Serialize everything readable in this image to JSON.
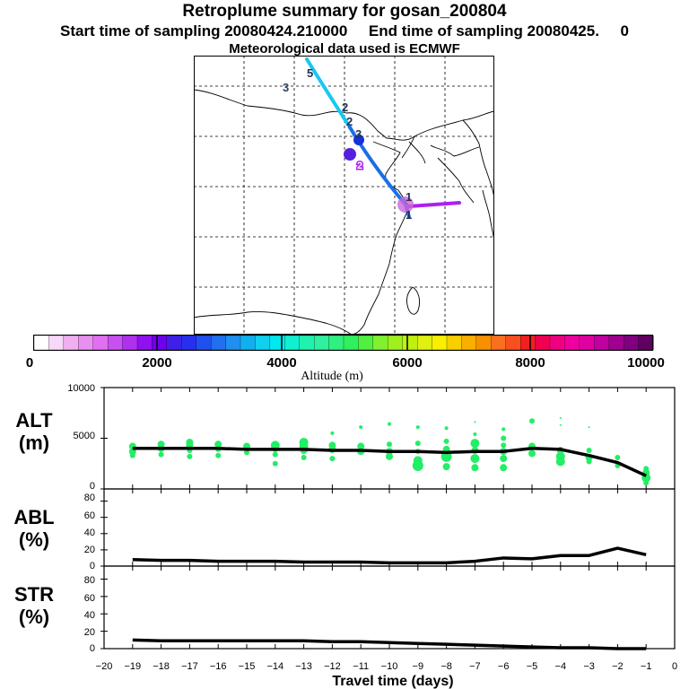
{
  "header": {
    "title": "Retroplume summary for gosan_200804",
    "subtitle": "Start time of sampling 20080424.210000     End time of sampling 20080425.     0",
    "met_line": "Meteorological data used is ECMWF"
  },
  "colors": {
    "scatter": "#22ee66",
    "line": "#000000",
    "plume_light_blue": "#18c8f0",
    "plume_blue": "#1a6ee8",
    "plume_purple": "#aa22ee",
    "marker_dark_blue": "#1830d8"
  },
  "map": {
    "marker_labels": [
      "5",
      "3",
      "2",
      "2",
      "3",
      "2",
      "1",
      "1"
    ]
  },
  "colorbar": {
    "title": "Altitude (m)",
    "ticks": [
      "0",
      "2000",
      "4000",
      "6000",
      "8000",
      "10000"
    ],
    "colors": [
      "#ffffff",
      "#f8d8f8",
      "#f0b0f0",
      "#e890f0",
      "#e070f0",
      "#c850f0",
      "#b030f0",
      "#9010f0",
      "#7000f0",
      "#4020e8",
      "#2830f0",
      "#2050f0",
      "#2070f0",
      "#2090f0",
      "#10b0f0",
      "#10d0f0",
      "#00e8f0",
      "#10f0d0",
      "#20f0b0",
      "#30f0a0",
      "#30f080",
      "#30f060",
      "#50f040",
      "#80f030",
      "#a0f020",
      "#c0f010",
      "#e0f010",
      "#f8f000",
      "#f8d000",
      "#f8b000",
      "#f89000",
      "#f87020",
      "#f85020",
      "#f02020",
      "#f00050",
      "#f00080",
      "#f000a0",
      "#e000a0",
      "#c000a0",
      "#a00090",
      "#800080",
      "#600060"
    ]
  },
  "chart_data": [
    {
      "type": "scatter",
      "name": "ALT",
      "ylabel": "ALT",
      "yunit": "(m)",
      "xlim": [
        -20,
        0
      ],
      "ylim": [
        0,
        10000
      ],
      "yticks": [
        "0",
        "5000",
        "10000"
      ],
      "line": {
        "x": [
          -19,
          -18,
          -17,
          -16,
          -15,
          -14,
          -13,
          -12,
          -11,
          -10,
          -9,
          -8,
          -7,
          -6,
          -5,
          -4,
          -3,
          -2,
          -1
        ],
        "y": [
          4000,
          4000,
          4000,
          4000,
          3900,
          3900,
          3900,
          3800,
          3800,
          3700,
          3700,
          3600,
          3700,
          3700,
          4000,
          3900,
          3300,
          2600,
          1300
        ]
      },
      "points": [
        {
          "x": -19,
          "y": 4200,
          "r": 4
        },
        {
          "x": -19,
          "y": 3700,
          "r": 4
        },
        {
          "x": -19,
          "y": 3300,
          "r": 3
        },
        {
          "x": -18,
          "y": 4400,
          "r": 4
        },
        {
          "x": -18,
          "y": 4000,
          "r": 4
        },
        {
          "x": -18,
          "y": 3400,
          "r": 3
        },
        {
          "x": -17,
          "y": 4600,
          "r": 4
        },
        {
          "x": -17,
          "y": 4300,
          "r": 4
        },
        {
          "x": -17,
          "y": 3800,
          "r": 3
        },
        {
          "x": -17,
          "y": 3200,
          "r": 3
        },
        {
          "x": -16,
          "y": 4400,
          "r": 4
        },
        {
          "x": -16,
          "y": 3900,
          "r": 3
        },
        {
          "x": -16,
          "y": 3300,
          "r": 3
        },
        {
          "x": -15,
          "y": 4200,
          "r": 4
        },
        {
          "x": -15,
          "y": 3600,
          "r": 3
        },
        {
          "x": -14,
          "y": 4300,
          "r": 5
        },
        {
          "x": -14,
          "y": 4000,
          "r": 4
        },
        {
          "x": -14,
          "y": 3400,
          "r": 3
        },
        {
          "x": -14,
          "y": 2500,
          "r": 3
        },
        {
          "x": -13,
          "y": 4600,
          "r": 5
        },
        {
          "x": -13,
          "y": 4200,
          "r": 5
        },
        {
          "x": -13,
          "y": 3800,
          "r": 4
        },
        {
          "x": -13,
          "y": 3100,
          "r": 3
        },
        {
          "x": -12,
          "y": 5500,
          "r": 2
        },
        {
          "x": -12,
          "y": 4300,
          "r": 4
        },
        {
          "x": -12,
          "y": 3900,
          "r": 4
        },
        {
          "x": -12,
          "y": 3000,
          "r": 3
        },
        {
          "x": -11,
          "y": 6100,
          "r": 2
        },
        {
          "x": -11,
          "y": 4200,
          "r": 4
        },
        {
          "x": -11,
          "y": 3700,
          "r": 4
        },
        {
          "x": -10,
          "y": 6400,
          "r": 2
        },
        {
          "x": -10,
          "y": 4400,
          "r": 3
        },
        {
          "x": -10,
          "y": 3700,
          "r": 4
        },
        {
          "x": -10,
          "y": 3200,
          "r": 4
        },
        {
          "x": -9,
          "y": 6100,
          "r": 2
        },
        {
          "x": -9,
          "y": 4500,
          "r": 3
        },
        {
          "x": -9,
          "y": 3700,
          "r": 3
        },
        {
          "x": -9,
          "y": 2800,
          "r": 5
        },
        {
          "x": -9,
          "y": 2300,
          "r": 6
        },
        {
          "x": -8,
          "y": 6000,
          "r": 2
        },
        {
          "x": -8,
          "y": 4700,
          "r": 3
        },
        {
          "x": -8,
          "y": 3900,
          "r": 4
        },
        {
          "x": -8,
          "y": 3200,
          "r": 6
        },
        {
          "x": -8,
          "y": 2200,
          "r": 4
        },
        {
          "x": -7,
          "y": 6600,
          "r": 1
        },
        {
          "x": -7,
          "y": 5400,
          "r": 2
        },
        {
          "x": -7,
          "y": 4500,
          "r": 5
        },
        {
          "x": -7,
          "y": 3800,
          "r": 4
        },
        {
          "x": -7,
          "y": 3000,
          "r": 5
        },
        {
          "x": -7,
          "y": 2100,
          "r": 4
        },
        {
          "x": -6,
          "y": 5900,
          "r": 2
        },
        {
          "x": -6,
          "y": 5000,
          "r": 3
        },
        {
          "x": -6,
          "y": 4300,
          "r": 3
        },
        {
          "x": -6,
          "y": 3700,
          "r": 4
        },
        {
          "x": -6,
          "y": 3000,
          "r": 4
        },
        {
          "x": -6,
          "y": 2100,
          "r": 4
        },
        {
          "x": -5,
          "y": 6700,
          "r": 3
        },
        {
          "x": -5,
          "y": 4200,
          "r": 4
        },
        {
          "x": -5,
          "y": 3500,
          "r": 4
        },
        {
          "x": -4,
          "y": 7000,
          "r": 1
        },
        {
          "x": -4,
          "y": 6300,
          "r": 1
        },
        {
          "x": -4,
          "y": 3800,
          "r": 4
        },
        {
          "x": -4,
          "y": 3200,
          "r": 5
        },
        {
          "x": -4,
          "y": 2700,
          "r": 5
        },
        {
          "x": -3,
          "y": 6100,
          "r": 1
        },
        {
          "x": -3,
          "y": 3800,
          "r": 3
        },
        {
          "x": -3,
          "y": 3100,
          "r": 4
        },
        {
          "x": -3,
          "y": 2700,
          "r": 3
        },
        {
          "x": -2,
          "y": 3100,
          "r": 3
        },
        {
          "x": -2,
          "y": 2300,
          "r": 3
        },
        {
          "x": -1,
          "y": 2000,
          "r": 3
        },
        {
          "x": -1,
          "y": 1600,
          "r": 4
        },
        {
          "x": -1,
          "y": 1100,
          "r": 5
        },
        {
          "x": -1,
          "y": 600,
          "r": 3
        }
      ]
    },
    {
      "type": "line",
      "name": "ABL",
      "ylabel": "ABL",
      "yunit": "(%)",
      "xlim": [
        -20,
        0
      ],
      "ylim": [
        0,
        95
      ],
      "yticks": [
        "0",
        "20",
        "40",
        "60",
        "80"
      ],
      "x": [
        -19,
        -18,
        -17,
        -16,
        -15,
        -14,
        -13,
        -12,
        -11,
        -10,
        -9,
        -8,
        -7,
        -6,
        -5,
        -4,
        -3,
        -2,
        -1
      ],
      "y": [
        8,
        7,
        7,
        6,
        6,
        6,
        5,
        5,
        5,
        4,
        4,
        4,
        6,
        10,
        9,
        13,
        13,
        22,
        14
      ]
    },
    {
      "type": "line",
      "name": "STR",
      "ylabel": "STR",
      "yunit": "(%)",
      "xlim": [
        -20,
        0
      ],
      "ylim": [
        0,
        95
      ],
      "yticks": [
        "0",
        "20",
        "40",
        "60",
        "80"
      ],
      "xlabel": "Travel time (days)",
      "xticks": [
        "−20",
        "−19",
        "−18",
        "−17",
        "−16",
        "−15",
        "−14",
        "−13",
        "−12",
        "−11",
        "−10",
        "−9",
        "−8",
        "−7",
        "−6",
        "−5",
        "−4",
        "−3",
        "−2",
        "−1",
        "0"
      ],
      "x": [
        -19,
        -18,
        -17,
        -16,
        -15,
        -14,
        -13,
        -12,
        -11,
        -10,
        -9,
        -8,
        -7,
        -6,
        -5,
        -4,
        -3,
        -2,
        -1
      ],
      "y": [
        10,
        9,
        9,
        9,
        9,
        9,
        9,
        8,
        8,
        7,
        6,
        5,
        4,
        3,
        2,
        1,
        1,
        0,
        0
      ]
    }
  ]
}
